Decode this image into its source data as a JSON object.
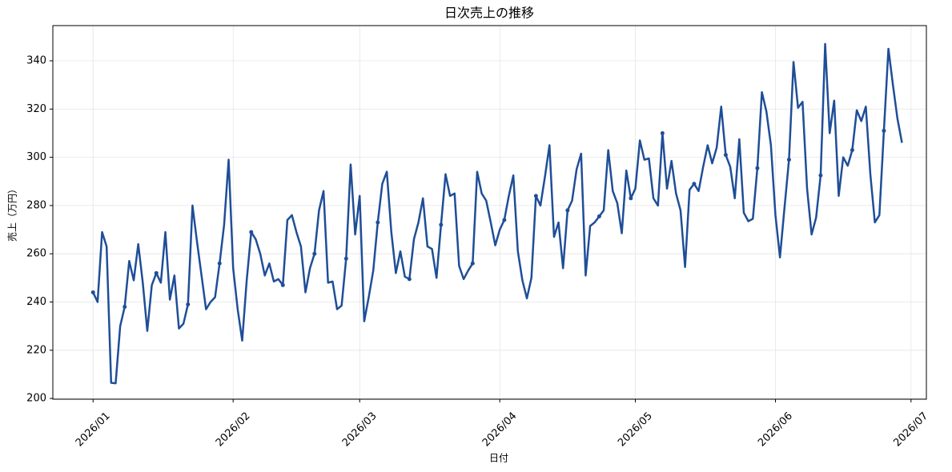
{
  "chart_data": {
    "type": "line",
    "title": "日次売上の推移",
    "x_label": "日付",
    "y_label": "売上（万円）",
    "color": "#1f4e98",
    "marker_every": 7,
    "grid": true,
    "values": [
      244,
      240,
      269,
      263,
      206.5,
      206.3,
      230,
      238,
      257,
      249,
      264,
      248,
      228,
      247,
      252,
      248,
      269,
      241,
      251,
      229,
      231,
      239,
      280,
      265,
      251,
      237,
      240,
      242,
      256,
      272,
      299,
      254,
      237,
      224,
      249,
      269,
      266,
      260,
      251,
      256,
      248.5,
      249.5,
      247,
      274,
      276,
      269,
      263,
      244,
      254,
      260,
      278,
      286,
      248,
      248.5,
      237,
      238.5,
      258,
      297,
      268,
      284,
      232,
      242,
      253,
      273,
      289,
      294,
      269,
      252,
      261,
      250.5,
      249.5,
      266,
      273,
      283,
      263,
      262,
      250,
      272,
      293,
      284,
      285,
      255,
      249.5,
      253,
      256,
      294,
      285,
      282,
      273,
      263.5,
      270,
      274,
      284,
      292.5,
      261,
      249,
      241.5,
      250,
      284,
      280,
      292,
      305,
      267,
      273,
      254,
      278,
      282,
      295,
      301.5,
      251,
      271.5,
      273,
      275.5,
      278,
      303,
      286,
      281,
      268.5,
      294.5,
      283,
      287,
      307,
      299,
      299.5,
      283,
      280,
      310,
      287,
      298.5,
      285,
      278,
      254.5,
      286.5,
      289,
      286,
      296,
      305,
      297.5,
      304,
      321,
      301,
      296,
      283,
      307.5,
      277,
      273.5,
      274.5,
      295.5,
      327,
      319,
      305,
      276,
      258.5,
      279,
      299,
      339.5,
      320.5,
      323,
      287,
      268,
      275,
      292.5,
      347,
      310,
      323.5,
      284,
      300,
      296.5,
      303,
      319.5,
      315,
      321,
      293,
      273,
      276,
      311,
      345,
      330,
      316,
      306
    ],
    "xlim": [
      -8.9,
      184.4
    ],
    "xticks": [
      {
        "value": 0,
        "label": "2026/01"
      },
      {
        "value": 31,
        "label": "2026/02"
      },
      {
        "value": 59,
        "label": "2026/03"
      },
      {
        "value": 90,
        "label": "2026/04"
      },
      {
        "value": 120,
        "label": "2026/05"
      },
      {
        "value": 151,
        "label": "2026/06"
      },
      {
        "value": 181,
        "label": "2026/07"
      }
    ],
    "ylim": [
      199.7,
      354.6
    ],
    "yticks": [
      200,
      220,
      240,
      260,
      280,
      300,
      320,
      340
    ]
  }
}
